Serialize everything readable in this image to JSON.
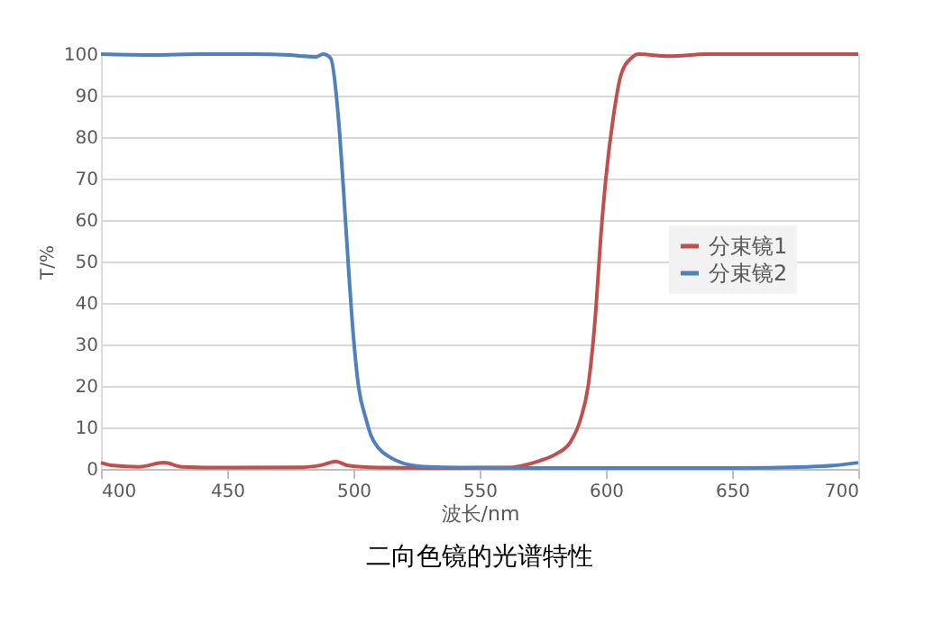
{
  "chart_data": {
    "type": "line",
    "title": "二向色镜的光谱特性",
    "xlabel": "波长/nm",
    "ylabel": "T/%",
    "xlim": [
      400,
      700
    ],
    "xticks": [
      400,
      450,
      500,
      550,
      600,
      650,
      700
    ],
    "ylim": [
      0,
      100
    ],
    "yticks": [
      0,
      10,
      20,
      30,
      40,
      50,
      60,
      70,
      80,
      90,
      100
    ],
    "grid": "y",
    "legend": "right",
    "marker": "none",
    "line_style": "solid",
    "series": [
      {
        "name": "分束镜1",
        "color": "#c0504d",
        "x": [
          400,
          405,
          415,
          425,
          432,
          450,
          480,
          488,
          493,
          498,
          510,
          530,
          560,
          574,
          580,
          586,
          590,
          593,
          596,
          598,
          600,
          603,
          606,
          610,
          613,
          625,
          640,
          660,
          700
        ],
        "values": [
          1.5,
          0.8,
          0.5,
          1.5,
          0.5,
          0.3,
          0.4,
          1,
          1.8,
          0.8,
          0.3,
          0.2,
          0.3,
          2,
          3.5,
          6.5,
          12,
          20,
          38,
          56,
          70,
          85,
          95,
          99,
          100,
          99.5,
          100,
          100,
          100
        ]
      },
      {
        "name": "分束镜2",
        "color": "#4f81bd",
        "x": [
          400,
          420,
          440,
          460,
          475,
          480,
          485,
          488,
          491,
          494,
          496,
          498,
          500,
          502,
          505,
          507,
          510,
          514,
          517,
          522,
          530,
          550,
          600,
          650,
          680,
          690,
          700
        ],
        "values": [
          100,
          99.8,
          100,
          100,
          99.8,
          99.5,
          99.3,
          100,
          99,
          85,
          68,
          49,
          32,
          20,
          12,
          8,
          5,
          3,
          2,
          1,
          0.5,
          0.3,
          0.2,
          0.2,
          0.5,
          0.8,
          1.5
        ]
      }
    ]
  }
}
